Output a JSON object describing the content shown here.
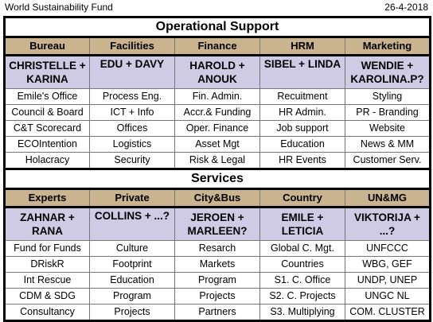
{
  "header": {
    "title": "World Sustainability Fund",
    "date": "26-4-2018"
  },
  "sections": [
    {
      "title": "Operational Support",
      "columns": [
        "Bureau",
        "Facilities",
        "Finance",
        "HRM",
        "Marketing"
      ],
      "teams": [
        "CHRISTELLE + KARINA",
        "EDU + DAVY",
        "HAROLD + ANOUK",
        "SIBEL + LINDA",
        "WENDIE + KAROLINA.P?"
      ],
      "rows": [
        [
          "Emile's Office",
          "Process Eng.",
          "Fin. Admin.",
          "Recuitment",
          "Styling"
        ],
        [
          "Council & Board",
          "ICT + Info",
          "Accr.& Funding",
          "HR Admin.",
          "PR - Branding"
        ],
        [
          "C&T Scorecard",
          "Offices",
          "Oper. Finance",
          "Job support",
          "Website"
        ],
        [
          "ECOIntention",
          "Logistics",
          "Asset Mgt",
          "Education",
          "News & MM"
        ],
        [
          "Holacracy",
          "Security",
          "Risk & Legal",
          "HR Events",
          "Customer Serv."
        ]
      ]
    },
    {
      "title": "Services",
      "columns": [
        "Experts",
        "Private",
        "City&Bus",
        "Country",
        "UN&MG"
      ],
      "teams": [
        "ZAHNAR + RANA",
        "COLLINS + ...?",
        "JEROEN + MARLEEN?",
        "EMILE + LETICIA",
        "VIKTORIJA + ...?"
      ],
      "rows": [
        [
          "Fund for Funds",
          "Culture",
          "Resarch",
          "Global C. Mgt.",
          "UNFCCC"
        ],
        [
          "DRiskR",
          "Footprint",
          "Markets",
          "Countries",
          "WBG, GEF"
        ],
        [
          "Int Rescue",
          "Education",
          "Program",
          "S1. C. Office",
          "UNDP, UNEP"
        ],
        [
          "CDM & SDG",
          "Program",
          "Projects",
          "S2. C. Projects",
          "UNGC NL"
        ],
        [
          "Consultancy",
          "Projects",
          "Partners",
          "S3. Multiplying",
          "COM. CLUSTER"
        ]
      ]
    }
  ]
}
